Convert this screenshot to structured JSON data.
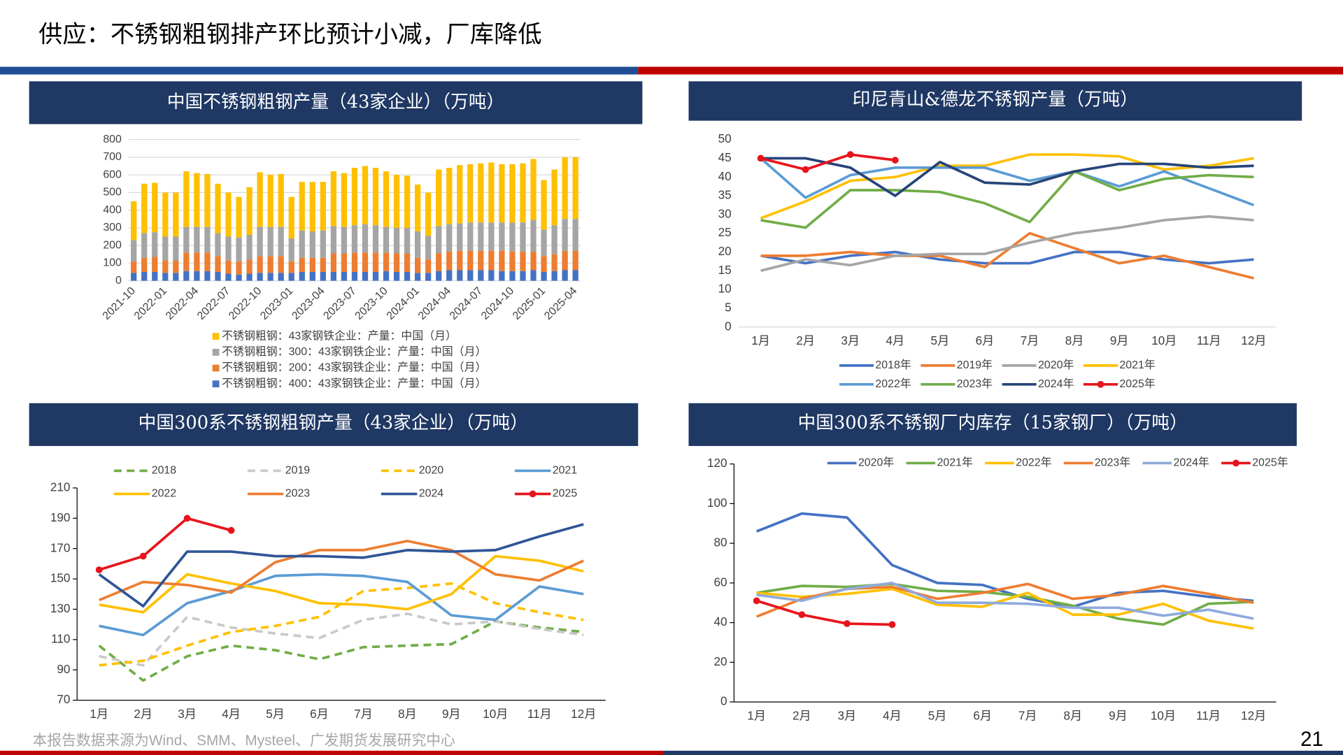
{
  "header": {
    "title": "供应：不锈钢粗钢排产环比预计小减，厂库降低"
  },
  "footer": {
    "source": "本报告数据来源为Wind、SMM、Mysteel、广发期货发展研究中心",
    "page": "21"
  },
  "chart_data": [
    {
      "type": "bar",
      "title": "中国不锈钢粗钢产量（43家企业）（万吨）",
      "stacked": true,
      "grid": true,
      "categories": [
        "2021-10",
        null,
        null,
        "2022-01",
        null,
        null,
        "2022-04",
        null,
        null,
        "2022-07",
        null,
        null,
        "2022-10",
        null,
        null,
        "2023-01",
        null,
        null,
        "2023-04",
        null,
        null,
        "2023-07",
        null,
        null,
        "2023-10",
        null,
        null,
        "2024-01",
        null,
        null,
        "2024-04",
        null,
        null,
        "2024-07",
        null,
        null,
        "2024-10",
        null,
        null,
        "2025-01",
        null,
        null,
        "2025-04"
      ],
      "ylim": [
        0,
        800
      ],
      "yticks": [
        0,
        100,
        200,
        300,
        400,
        500,
        600,
        700,
        800
      ],
      "series": [
        {
          "name": "不锈钢粗钢：400：43家钢铁企业：产量：中国（月）",
          "color": "#4472c4",
          "values": [
            45,
            50,
            50,
            45,
            45,
            55,
            55,
            55,
            50,
            40,
            35,
            40,
            45,
            45,
            45,
            45,
            50,
            50,
            50,
            50,
            50,
            50,
            50,
            50,
            55,
            50,
            50,
            45,
            45,
            55,
            60,
            60,
            60,
            60,
            60,
            55,
            55,
            55,
            60,
            50,
            55,
            60,
            60
          ]
        },
        {
          "name": "不锈钢粗钢：200：43家钢铁企业：产量：中国（月）",
          "color": "#ed7d31",
          "values": [
            65,
            80,
            85,
            70,
            70,
            105,
            105,
            105,
            90,
            75,
            75,
            80,
            95,
            95,
            95,
            65,
            80,
            80,
            80,
            105,
            105,
            110,
            110,
            110,
            105,
            105,
            105,
            85,
            75,
            100,
            105,
            110,
            110,
            110,
            110,
            115,
            110,
            110,
            105,
            90,
            95,
            110,
            110
          ]
        },
        {
          "name": "不锈钢粗钢：300：43家钢铁企业：产量：中国（月）",
          "color": "#a5a5a5",
          "values": [
            120,
            140,
            140,
            135,
            135,
            145,
            145,
            145,
            130,
            135,
            135,
            140,
            165,
            165,
            165,
            130,
            155,
            150,
            155,
            155,
            150,
            155,
            160,
            155,
            145,
            145,
            145,
            150,
            135,
            155,
            155,
            155,
            160,
            160,
            160,
            160,
            165,
            165,
            180,
            150,
            165,
            180,
            180
          ]
        },
        {
          "name": "不锈钢粗钢：43家钢铁企业：产量：中国（月）",
          "color": "#ffc000",
          "values": [
            220,
            280,
            280,
            250,
            250,
            315,
            305,
            300,
            280,
            250,
            230,
            270,
            310,
            295,
            300,
            235,
            275,
            280,
            275,
            310,
            305,
            325,
            330,
            325,
            315,
            300,
            295,
            265,
            245,
            320,
            320,
            330,
            330,
            335,
            340,
            330,
            330,
            335,
            345,
            280,
            315,
            350,
            350
          ]
        }
      ]
    },
    {
      "type": "line",
      "title": "印尼青山&德龙不锈钢产量（万吨）",
      "grid": false,
      "categories": [
        "1月",
        "2月",
        "3月",
        "4月",
        "5月",
        "6月",
        "7月",
        "8月",
        "9月",
        "10月",
        "11月",
        "12月"
      ],
      "ylim": [
        0,
        50
      ],
      "yticks": [
        0,
        5,
        10,
        15,
        20,
        25,
        30,
        35,
        40,
        45,
        50
      ],
      "series": [
        {
          "name": "2018年",
          "color": "#4472c4",
          "values": [
            19,
            17,
            19,
            20,
            18,
            17,
            17,
            20,
            20,
            18,
            17,
            18
          ]
        },
        {
          "name": "2019年",
          "color": "#ed7d31",
          "values": [
            19,
            19,
            20,
            19,
            19,
            16,
            25,
            21,
            17,
            19,
            16,
            13
          ]
        },
        {
          "name": "2020年",
          "color": "#a5a5a5",
          "values": [
            15,
            18,
            16.5,
            19,
            19.5,
            19.5,
            22.5,
            25,
            26.5,
            28.5,
            29.5,
            28.5
          ]
        },
        {
          "name": "2021年",
          "color": "#ffc000",
          "values": [
            29,
            33.5,
            39,
            40,
            43,
            43,
            46,
            46,
            45.5,
            42,
            43,
            45
          ]
        },
        {
          "name": "2022年",
          "color": "#5b9bd5",
          "values": [
            45,
            34.5,
            40.5,
            42.5,
            42.5,
            42.5,
            39,
            41.5,
            37.5,
            41.5,
            37,
            32.5
          ]
        },
        {
          "name": "2023年",
          "color": "#70ad47",
          "values": [
            28.5,
            26.5,
            36.5,
            36.5,
            36,
            33,
            28,
            41.5,
            36.5,
            39.5,
            40.5,
            40
          ]
        },
        {
          "name": "2024年",
          "color": "#264478",
          "values": [
            45,
            45,
            42.5,
            35,
            44,
            38.5,
            38,
            41.5,
            43.5,
            43.5,
            42.5,
            43
          ]
        },
        {
          "name": "2025年",
          "color": "#e8141c",
          "marker": "circle",
          "values": [
            45,
            42,
            46,
            44.5,
            null,
            null,
            null,
            null,
            null,
            null,
            null,
            null
          ]
        }
      ]
    },
    {
      "type": "line",
      "title": "中国300系不锈钢粗钢产量（43家企业）（万吨）",
      "grid": false,
      "categories": [
        "1月",
        "2月",
        "3月",
        "4月",
        "5月",
        "6月",
        "7月",
        "8月",
        "9月",
        "10月",
        "11月",
        "12月"
      ],
      "ylim": [
        70,
        210
      ],
      "yticks": [
        70,
        90,
        110,
        130,
        150,
        170,
        190,
        210
      ],
      "series": [
        {
          "name": "2018",
          "color": "#70ad47",
          "dash": true,
          "values": [
            106,
            83,
            99,
            106,
            103,
            97,
            105,
            106,
            107,
            122,
            118,
            115
          ]
        },
        {
          "name": "2019",
          "color": "#c9c9c9",
          "dash": true,
          "values": [
            99,
            93,
            125,
            118,
            114,
            111,
            123,
            127,
            120,
            122,
            117,
            113
          ]
        },
        {
          "name": "2020",
          "color": "#ffc000",
          "dash": true,
          "values": [
            93,
            96,
            106,
            115,
            119,
            125,
            142,
            144,
            147,
            134,
            128,
            123
          ]
        },
        {
          "name": "2021",
          "color": "#5b9bd5",
          "values": [
            119,
            113,
            134,
            142,
            152,
            153,
            152,
            148,
            126,
            123,
            145,
            140
          ]
        },
        {
          "name": "2022",
          "color": "#ffc000",
          "values": [
            133,
            128,
            153,
            147,
            142,
            134,
            133,
            130,
            140,
            165,
            162,
            155
          ]
        },
        {
          "name": "2023",
          "color": "#ed7d31",
          "values": [
            136,
            148,
            146,
            141,
            161,
            169,
            169,
            175,
            169,
            153,
            149,
            162
          ]
        },
        {
          "name": "2024",
          "color": "#2f5597",
          "values": [
            153,
            132,
            168,
            168,
            165,
            165,
            164,
            169,
            168,
            169,
            178,
            186
          ]
        },
        {
          "name": "2025",
          "color": "#e8141c",
          "marker": "circle",
          "values": [
            156,
            165,
            190,
            182,
            null,
            null,
            null,
            null,
            null,
            null,
            null,
            null
          ]
        }
      ]
    },
    {
      "type": "line",
      "title": "中国300系不锈钢厂内库存（15家钢厂）（万吨）",
      "grid": false,
      "categories": [
        "1月",
        "2月",
        "3月",
        "4月",
        "5月",
        "6月",
        "7月",
        "8月",
        "9月",
        "10月",
        "11月",
        "12月"
      ],
      "ylim": [
        0,
        120
      ],
      "yticks": [
        0,
        20,
        40,
        60,
        80,
        100,
        120
      ],
      "series": [
        {
          "name": "2020年",
          "color": "#4472c4",
          "values": [
            86,
            95,
            93,
            69,
            60,
            59,
            52,
            48,
            55,
            56,
            53,
            51
          ]
        },
        {
          "name": "2021年",
          "color": "#70ad47",
          "values": [
            55,
            58.5,
            58,
            59.5,
            56,
            55.5,
            53,
            48.5,
            42,
            39,
            49.5,
            50.5
          ]
        },
        {
          "name": "2022年",
          "color": "#ffc000",
          "values": [
            55,
            53,
            54.5,
            57,
            49,
            48,
            55,
            44,
            44,
            49.5,
            41,
            37
          ]
        },
        {
          "name": "2023年",
          "color": "#ed7d31",
          "values": [
            43,
            52,
            57,
            58,
            52,
            55,
            59.5,
            52,
            54,
            58.5,
            54.5,
            50
          ]
        },
        {
          "name": "2024年",
          "color": "#8faadc",
          "values": [
            54,
            51,
            57,
            60,
            50,
            50,
            49.5,
            47.5,
            47.5,
            43.5,
            46.5,
            42
          ]
        },
        {
          "name": "2025年",
          "color": "#e8141c",
          "marker": "circle",
          "values": [
            51,
            44,
            39.5,
            39,
            null,
            null,
            null,
            null,
            null,
            null,
            null,
            null
          ]
        }
      ]
    }
  ]
}
